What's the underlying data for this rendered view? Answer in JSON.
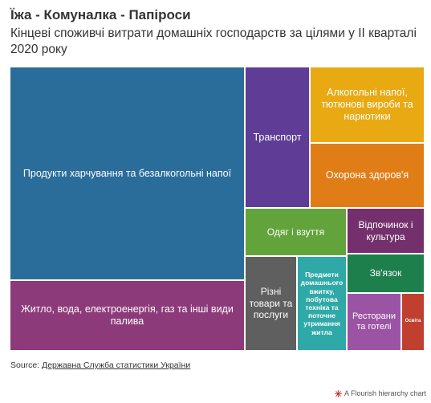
{
  "header": {
    "title": "Їжа - Комуналка - Папіроси",
    "subtitle": "Кінцеві споживчі витрати домашніх господарств за цілями у II кварталі 2020 року"
  },
  "chart_data": {
    "type": "treemap",
    "items": [
      {
        "label": "Продукти харчування та безалкогольні напої",
        "color": "#2a6d9a"
      },
      {
        "label": "Житло, вода, електроенергія, газ та інші види палива",
        "color": "#8d3a7a"
      },
      {
        "label": "Транспорт",
        "color": "#5f3d96"
      },
      {
        "label": "Алкогольні напої, тютюнові вироби та наркотики",
        "color": "#e8a912"
      },
      {
        "label": "Охорона здоров'я",
        "color": "#e07d16"
      },
      {
        "label": "Одяг і взуття",
        "color": "#63a33c"
      },
      {
        "label": "Відпочинок і культура",
        "color": "#74306c"
      },
      {
        "label": "Зв'язок",
        "color": "#1d7f4c"
      },
      {
        "label": "Різні товари та послуги",
        "color": "#5f5f5f"
      },
      {
        "label": "Предмети домашнього вжитку, побутова техніка та поточне утримання житла",
        "color": "#2ea9a7"
      },
      {
        "label": "Ресторани та готелі",
        "color": "#9b54a4"
      },
      {
        "label": "Освіта",
        "color": "#c0402f"
      }
    ]
  },
  "footer": {
    "source_prefix": "Source: ",
    "source_link": "Державна Служба статистики України",
    "credit": "A Flourish hierarchy chart"
  }
}
